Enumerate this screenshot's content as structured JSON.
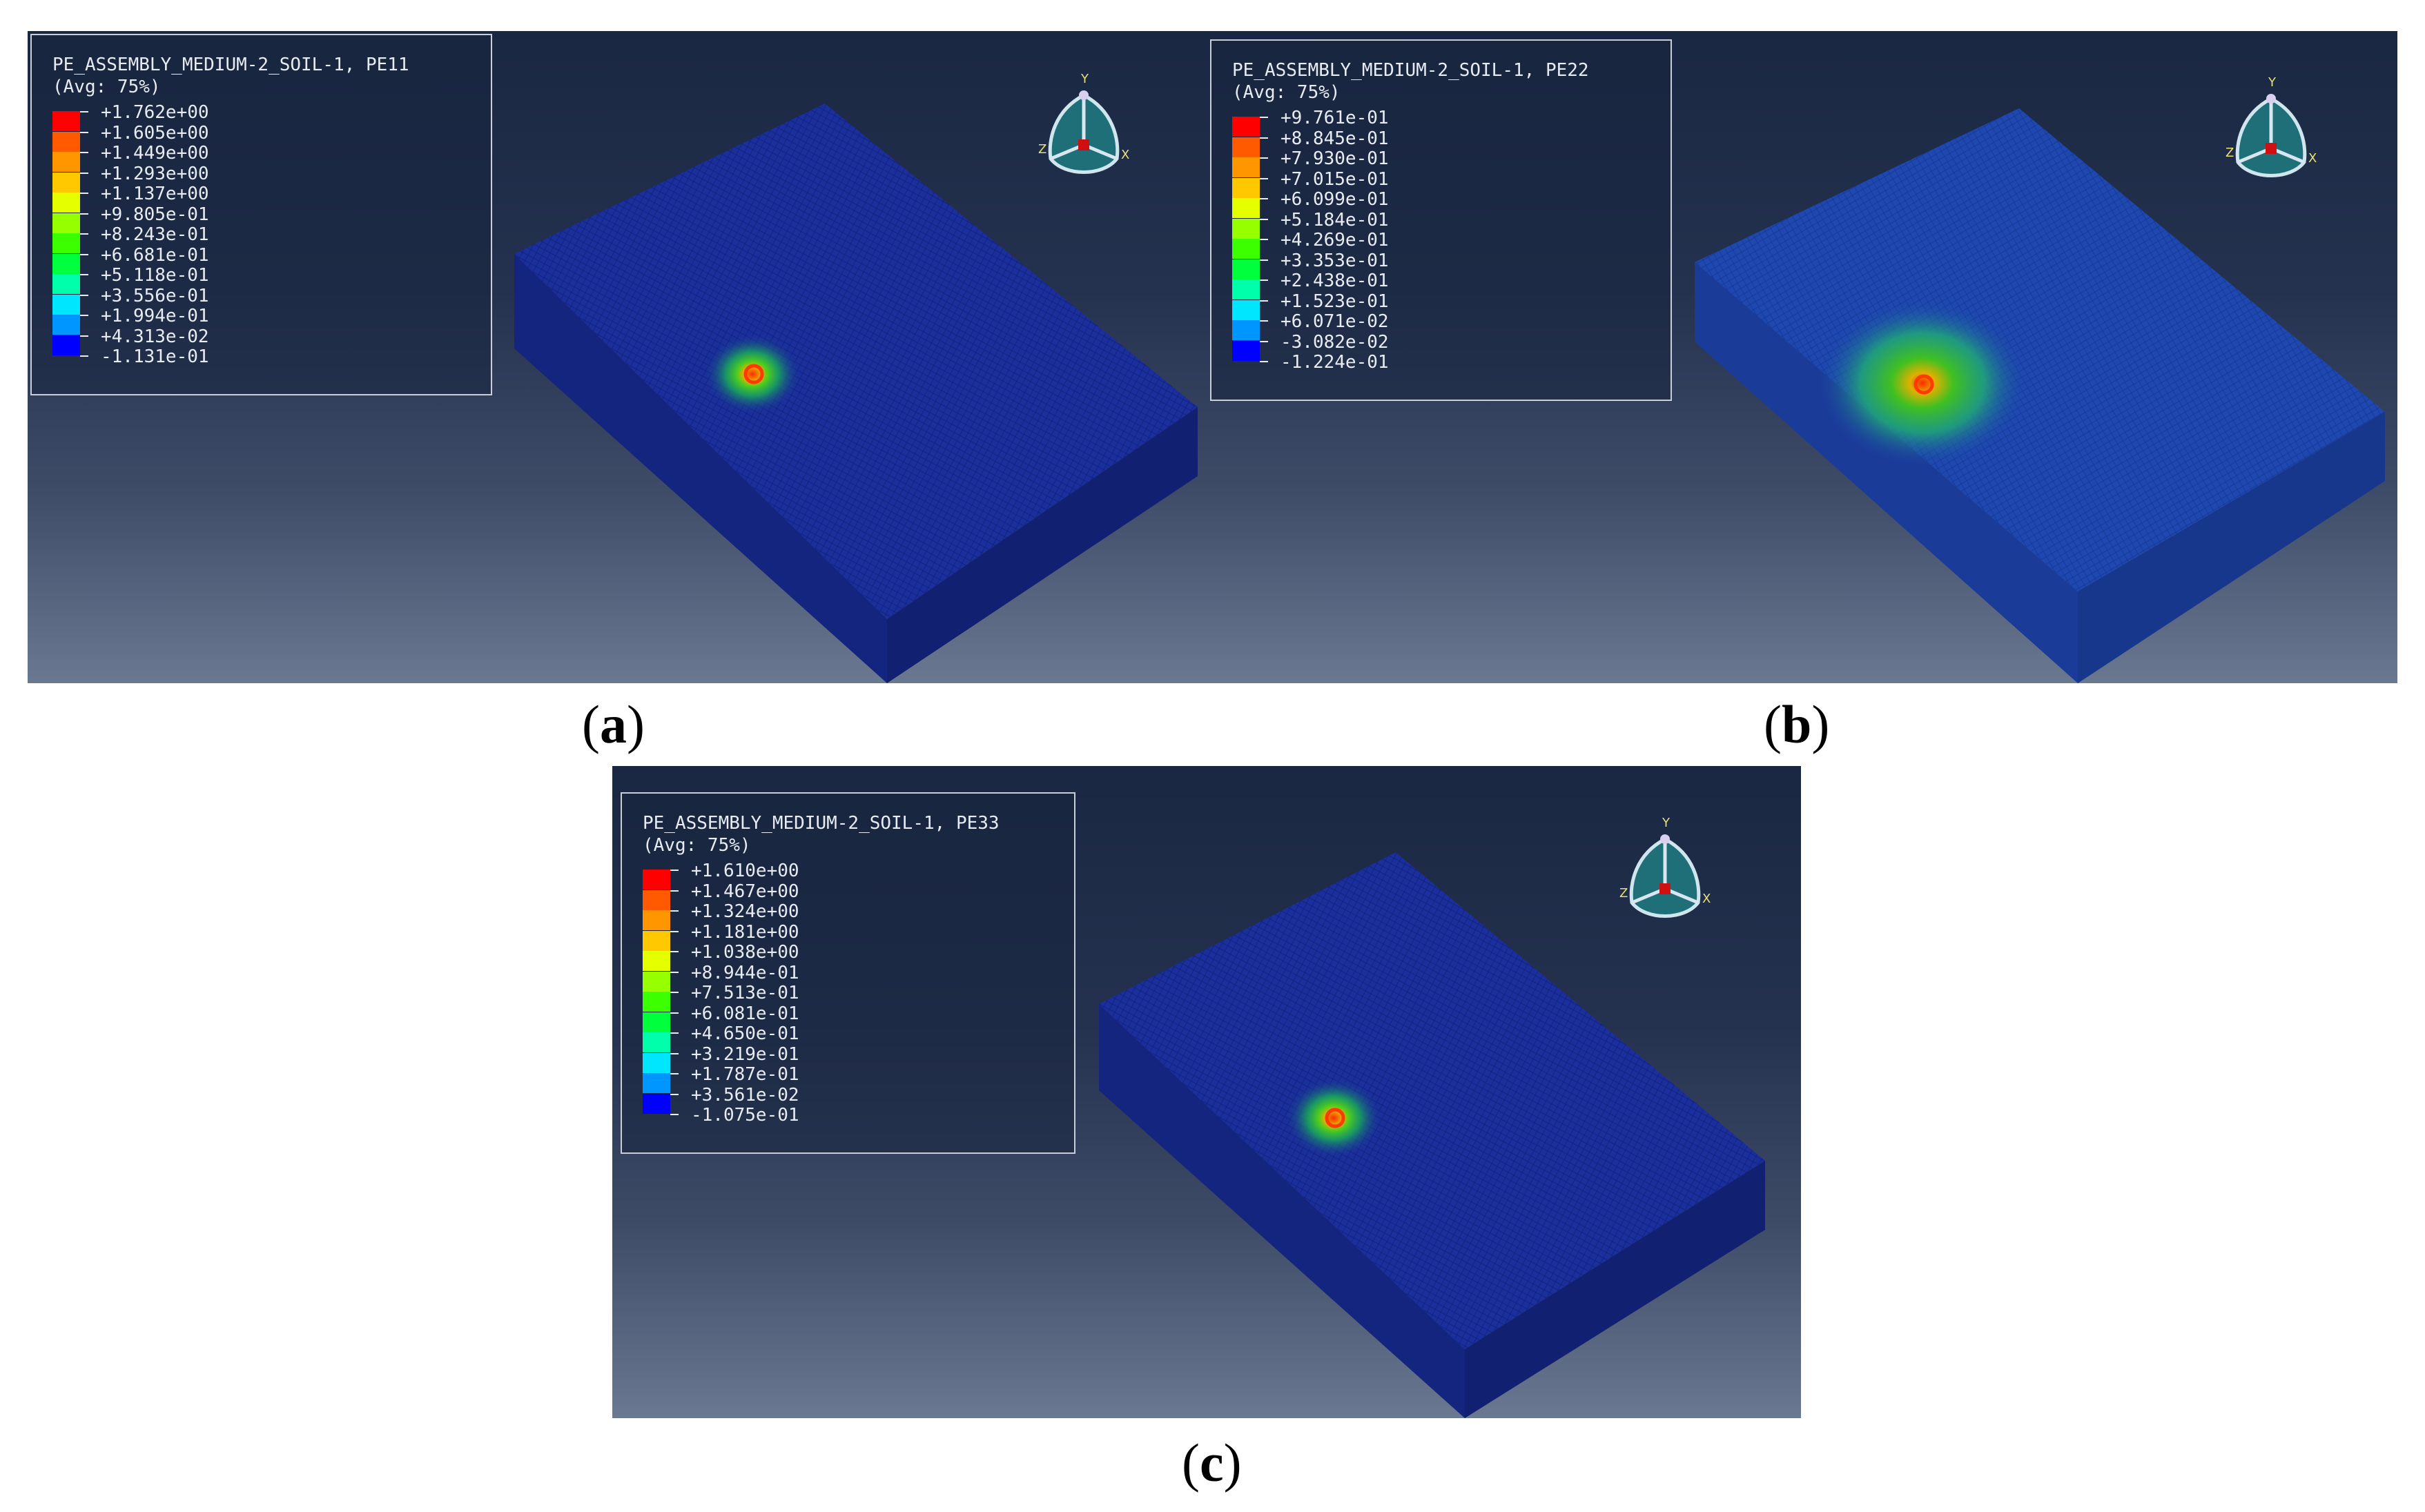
{
  "panels": [
    {
      "id": "a",
      "caption_letter": "a",
      "legend_title": "PE_ASSEMBLY_MEDIUM-2_SOIL-1, PE11",
      "legend_avg": "(Avg: 75%)",
      "values": [
        "+1.762e+00",
        "+1.605e+00",
        "+1.449e+00",
        "+1.293e+00",
        "+1.137e+00",
        "+9.805e-01",
        "+8.243e-01",
        "+6.681e-01",
        "+5.118e-01",
        "+3.556e-01",
        "+1.994e-01",
        "+4.313e-02",
        "-1.131e-01"
      ]
    },
    {
      "id": "b",
      "caption_letter": "b",
      "legend_title": "PE_ASSEMBLY_MEDIUM-2_SOIL-1, PE22",
      "legend_avg": "(Avg: 75%)",
      "values": [
        "+9.761e-01",
        "+8.845e-01",
        "+7.930e-01",
        "+7.015e-01",
        "+6.099e-01",
        "+5.184e-01",
        "+4.269e-01",
        "+3.353e-01",
        "+2.438e-01",
        "+1.523e-01",
        "+6.071e-02",
        "-3.082e-02",
        "-1.224e-01"
      ]
    },
    {
      "id": "c",
      "caption_letter": "c",
      "legend_title": "PE_ASSEMBLY_MEDIUM-2_SOIL-1, PE33",
      "legend_avg": "(Avg: 75%)",
      "values": [
        "+1.610e+00",
        "+1.467e+00",
        "+1.324e+00",
        "+1.181e+00",
        "+1.038e+00",
        "+8.944e-01",
        "+7.513e-01",
        "+6.081e-01",
        "+4.650e-01",
        "+3.219e-01",
        "+1.787e-01",
        "+3.561e-02",
        "-1.075e-01"
      ]
    }
  ],
  "colormap": [
    "#ff0000",
    "#ff5a00",
    "#ff9600",
    "#ffc800",
    "#e6ff00",
    "#96ff00",
    "#3cff00",
    "#00ff3c",
    "#00ffaa",
    "#00e6ff",
    "#0096ff",
    "#0046ff",
    "#0000ff"
  ],
  "triad_axes": {
    "y": "Y",
    "z": "Z",
    "x": "X"
  }
}
